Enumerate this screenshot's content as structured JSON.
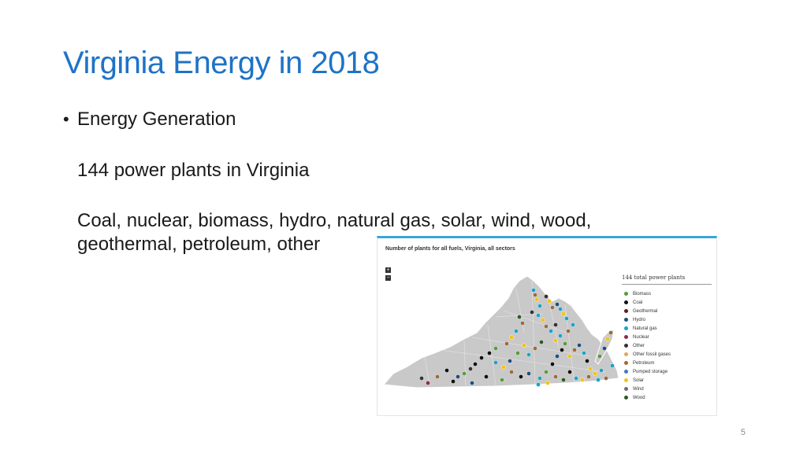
{
  "slide": {
    "title": "Virginia Energy in 2018",
    "bullet": "Energy Generation",
    "line1": "144 power plants in Virginia",
    "line2a": "Coal, nuclear, biomass, hydro, natural gas, solar, wind, wood,",
    "line2b": "geothermal, petroleum, other",
    "page_number": "5"
  },
  "figure": {
    "title": "Number of plants for all fuels, Virginia, all sectors",
    "zoom_in": "+",
    "zoom_out": "−",
    "legend_title": "144 total power plants",
    "legend": [
      {
        "label": "Biomass",
        "color": "#5a9a3c"
      },
      {
        "label": "Coal",
        "color": "#111111"
      },
      {
        "label": "Geothermal",
        "color": "#5a1f1f"
      },
      {
        "label": "Hydro",
        "color": "#1d4f7a"
      },
      {
        "label": "Natural gas",
        "color": "#1aa3c9"
      },
      {
        "label": "Nuclear",
        "color": "#8a2b4c"
      },
      {
        "label": "Other",
        "color": "#333333"
      },
      {
        "label": "Other fossil gases",
        "color": "#e2a65a"
      },
      {
        "label": "Petroleum",
        "color": "#9a6a3d"
      },
      {
        "label": "Pumped storage",
        "color": "#3b7fb0"
      },
      {
        "label": "Solar",
        "color": "#f2c21a"
      },
      {
        "label": "Wind",
        "color": "#6e6e6e"
      },
      {
        "label": "Wood",
        "color": "#2d5a22"
      }
    ]
  }
}
